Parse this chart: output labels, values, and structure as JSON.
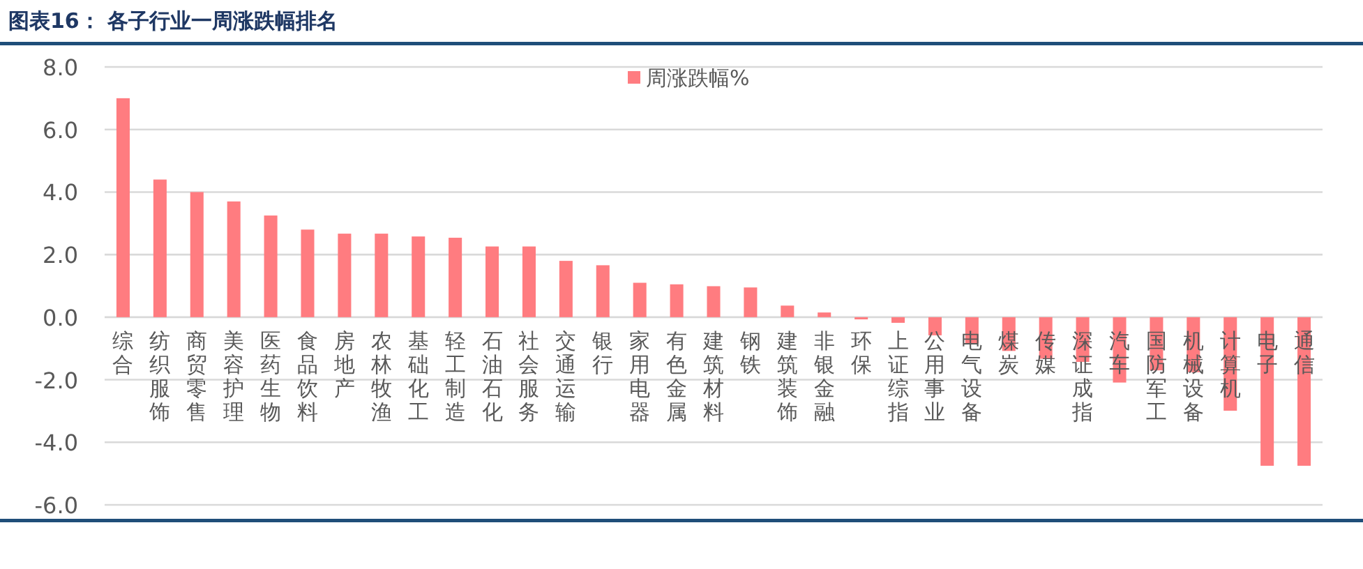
{
  "chart_data": {
    "type": "bar",
    "title": "图表16：  各子行业一周涨跌幅排名",
    "categories": [
      "综合",
      "纺织服饰",
      "商贸零售",
      "美容护理",
      "医药生物",
      "食品饮料",
      "房地产",
      "农林牧渔",
      "基础化工",
      "轻工制造",
      "石油石化",
      "社会服务",
      "交通运输",
      "银行",
      "家用电器",
      "有色金属",
      "建筑材料",
      "钢铁",
      "建筑装饰",
      "非银金融",
      "环保",
      "上证综指",
      "公用事业",
      "电气设备",
      "煤炭",
      "传媒",
      "深证成指",
      "汽车",
      "国防军工",
      "机械设备",
      "计算机",
      "电子",
      "通信"
    ],
    "series": [
      {
        "name": "周涨跌幅%",
        "color": "#ff7c80",
        "values": [
          7.0,
          4.4,
          4.0,
          3.7,
          3.25,
          2.8,
          2.67,
          2.67,
          2.58,
          2.54,
          2.26,
          2.26,
          1.8,
          1.66,
          1.1,
          1.05,
          0.99,
          0.95,
          0.37,
          0.15,
          -0.07,
          -0.18,
          -0.58,
          -0.84,
          -1.08,
          -1.33,
          -1.43,
          -2.09,
          -1.7,
          -1.76,
          -2.99,
          -4.75,
          -4.75
        ]
      }
    ],
    "ylim": [
      -6,
      8
    ],
    "yticks": [
      {
        "value": -6,
        "label": "-6.0"
      },
      {
        "value": -4,
        "label": "-4.0"
      },
      {
        "value": -2,
        "label": "-2.0"
      },
      {
        "value": 0,
        "label": "0.0"
      },
      {
        "value": 2,
        "label": "2.0"
      },
      {
        "value": 4,
        "label": "4.0"
      },
      {
        "value": 6,
        "label": "6.0"
      },
      {
        "value": 8,
        "label": "8.0"
      }
    ],
    "grid": "y",
    "legend": "top"
  }
}
